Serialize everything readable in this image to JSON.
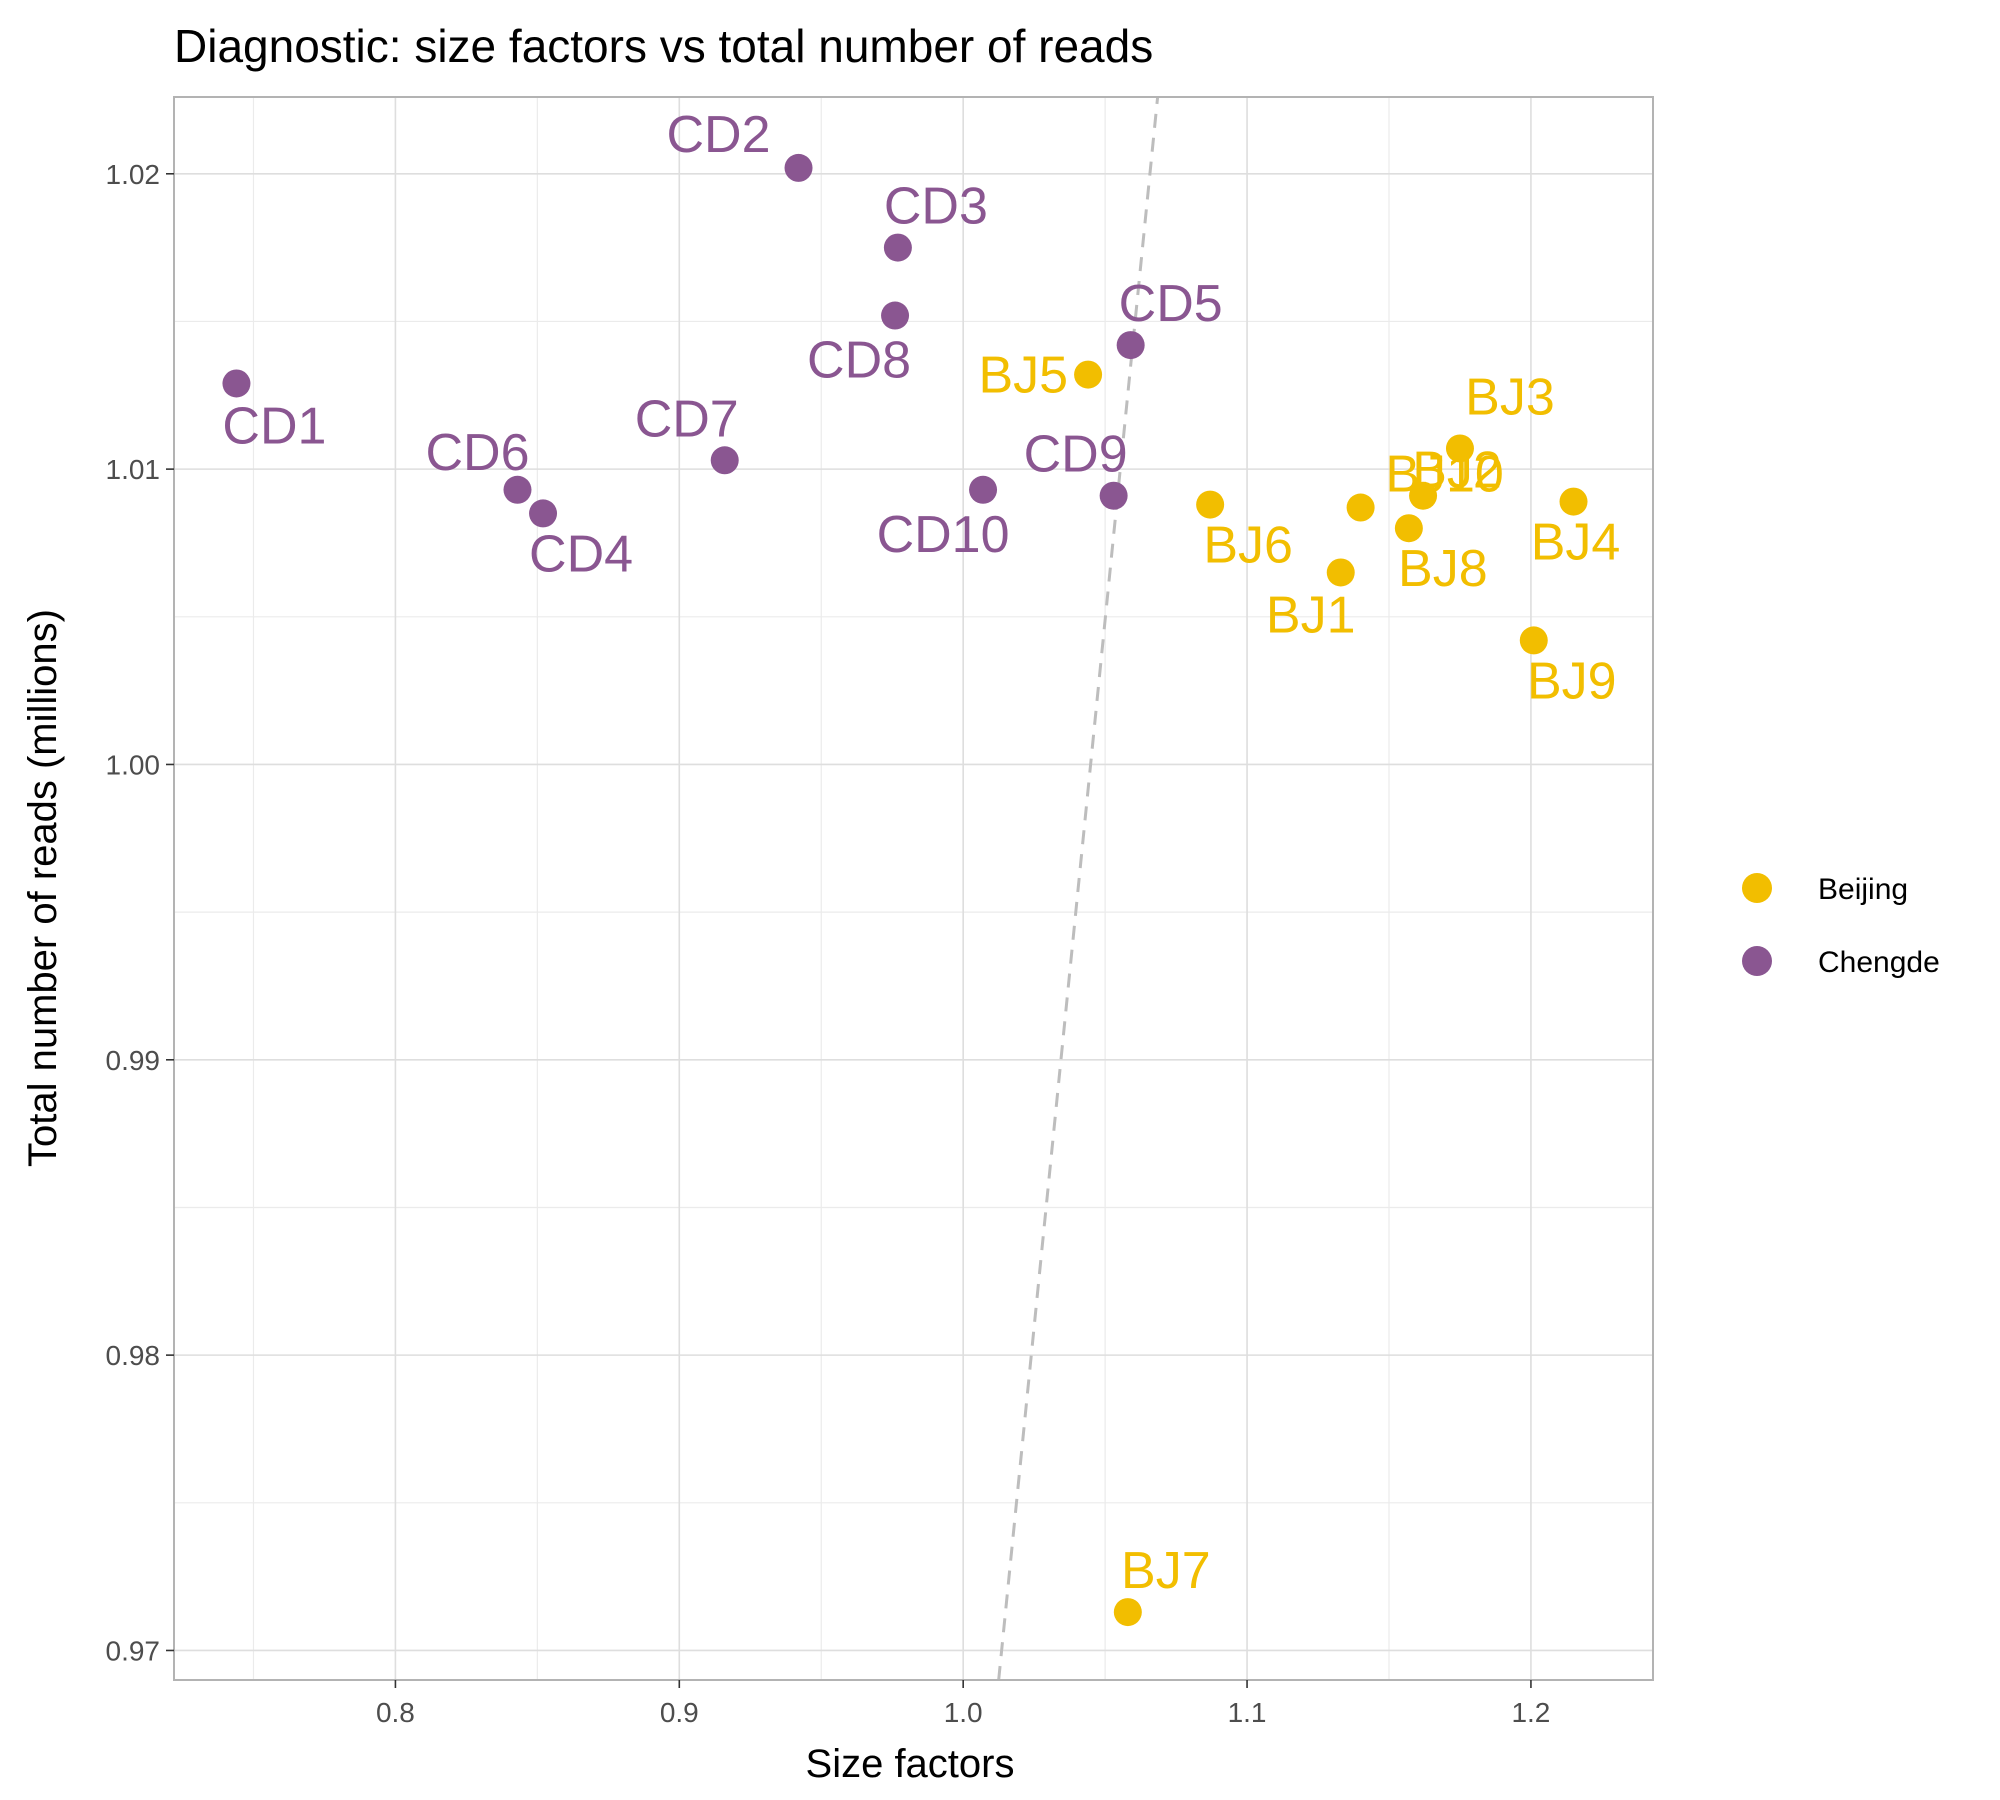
{
  "chart_data": {
    "type": "scatter",
    "title": "Diagnostic: size factors vs total number of reads",
    "xlabel": "Size factors",
    "ylabel": "Total number of reads (millions)",
    "xlim": [
      0.722,
      1.243
    ],
    "ylim": [
      0.969,
      1.0226
    ],
    "x_ticks": [
      0.8,
      0.9,
      1.0,
      1.1,
      1.2
    ],
    "x_tick_labels": [
      "0.8",
      "0.9",
      "1.0",
      "1.1",
      "1.2"
    ],
    "y_ticks": [
      0.97,
      0.98,
      0.99,
      1.0,
      1.01,
      1.02
    ],
    "y_tick_labels": [
      "0.97",
      "0.98",
      "0.99",
      "1.00",
      "1.01",
      "1.02"
    ],
    "grid": true,
    "legend_position": "right",
    "reference_line": {
      "style": "dashed",
      "color": "#bdbdbd",
      "points": [
        [
          1.0125,
          0.969
        ],
        [
          1.0685,
          1.0226
        ]
      ]
    },
    "series": [
      {
        "name": "Beijing",
        "color": "#F2BE00",
        "points": [
          {
            "label": "BJ1",
            "x": 1.133,
            "y": 1.0065
          },
          {
            "label": "BJ2",
            "x": 1.162,
            "y": 1.0091
          },
          {
            "label": "BJ3",
            "x": 1.175,
            "y": 1.0107
          },
          {
            "label": "BJ4",
            "x": 1.215,
            "y": 1.0089
          },
          {
            "label": "BJ5",
            "x": 1.044,
            "y": 1.0132
          },
          {
            "label": "BJ6",
            "x": 1.087,
            "y": 1.0088
          },
          {
            "label": "BJ7",
            "x": 1.058,
            "y": 0.9713
          },
          {
            "label": "BJ8",
            "x": 1.157,
            "y": 1.008
          },
          {
            "label": "BJ9",
            "x": 1.201,
            "y": 1.0042
          },
          {
            "label": "BJ10",
            "x": 1.14,
            "y": 1.0087
          }
        ]
      },
      {
        "name": "Chengde",
        "color": "#8A5691",
        "points": [
          {
            "label": "CD1",
            "x": 0.744,
            "y": 1.0129
          },
          {
            "label": "CD2",
            "x": 0.942,
            "y": 1.0202
          },
          {
            "label": "CD3",
            "x": 0.977,
            "y": 1.0175
          },
          {
            "label": "CD4",
            "x": 0.852,
            "y": 1.0085
          },
          {
            "label": "CD5",
            "x": 1.059,
            "y": 1.0142
          },
          {
            "label": "CD6",
            "x": 0.843,
            "y": 1.0093
          },
          {
            "label": "CD7",
            "x": 0.916,
            "y": 1.0103
          },
          {
            "label": "CD8",
            "x": 0.976,
            "y": 1.0152
          },
          {
            "label": "CD9",
            "x": 1.053,
            "y": 1.0091
          },
          {
            "label": "CD10",
            "x": 1.007,
            "y": 1.0093
          }
        ]
      }
    ]
  }
}
